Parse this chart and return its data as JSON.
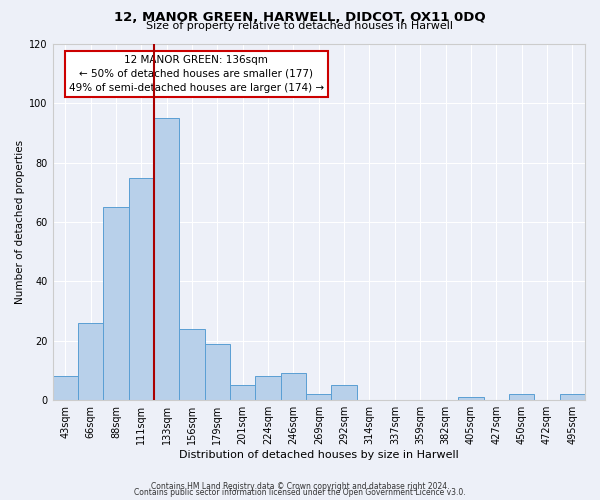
{
  "title": "12, MANOR GREEN, HARWELL, DIDCOT, OX11 0DQ",
  "subtitle": "Size of property relative to detached houses in Harwell",
  "xlabel": "Distribution of detached houses by size in Harwell",
  "ylabel": "Number of detached properties",
  "bar_labels": [
    "43sqm",
    "66sqm",
    "88sqm",
    "111sqm",
    "133sqm",
    "156sqm",
    "179sqm",
    "201sqm",
    "224sqm",
    "246sqm",
    "269sqm",
    "292sqm",
    "314sqm",
    "337sqm",
    "359sqm",
    "382sqm",
    "405sqm",
    "427sqm",
    "450sqm",
    "472sqm",
    "495sqm"
  ],
  "bar_values": [
    8,
    26,
    65,
    75,
    95,
    24,
    19,
    5,
    8,
    9,
    2,
    5,
    0,
    0,
    0,
    0,
    1,
    0,
    2,
    0,
    2
  ],
  "bar_color": "#b8d0ea",
  "bar_edge_color": "#5a9fd4",
  "ylim": [
    0,
    120
  ],
  "yticks": [
    0,
    20,
    40,
    60,
    80,
    100,
    120
  ],
  "vline_x_idx": 4,
  "vline_color": "#aa0000",
  "annotation_text": "12 MANOR GREEN: 136sqm\n← 50% of detached houses are smaller (177)\n49% of semi-detached houses are larger (174) →",
  "annotation_box_edge": "#cc0000",
  "footer_line1": "Contains HM Land Registry data © Crown copyright and database right 2024.",
  "footer_line2": "Contains public sector information licensed under the Open Government Licence v3.0.",
  "background_color": "#edf0f8",
  "plot_background": "#edf0f8",
  "grid_color": "#ffffff",
  "title_fontsize": 9.5,
  "subtitle_fontsize": 8,
  "tick_fontsize": 7,
  "ylabel_fontsize": 7.5,
  "xlabel_fontsize": 8,
  "footer_fontsize": 5.5
}
